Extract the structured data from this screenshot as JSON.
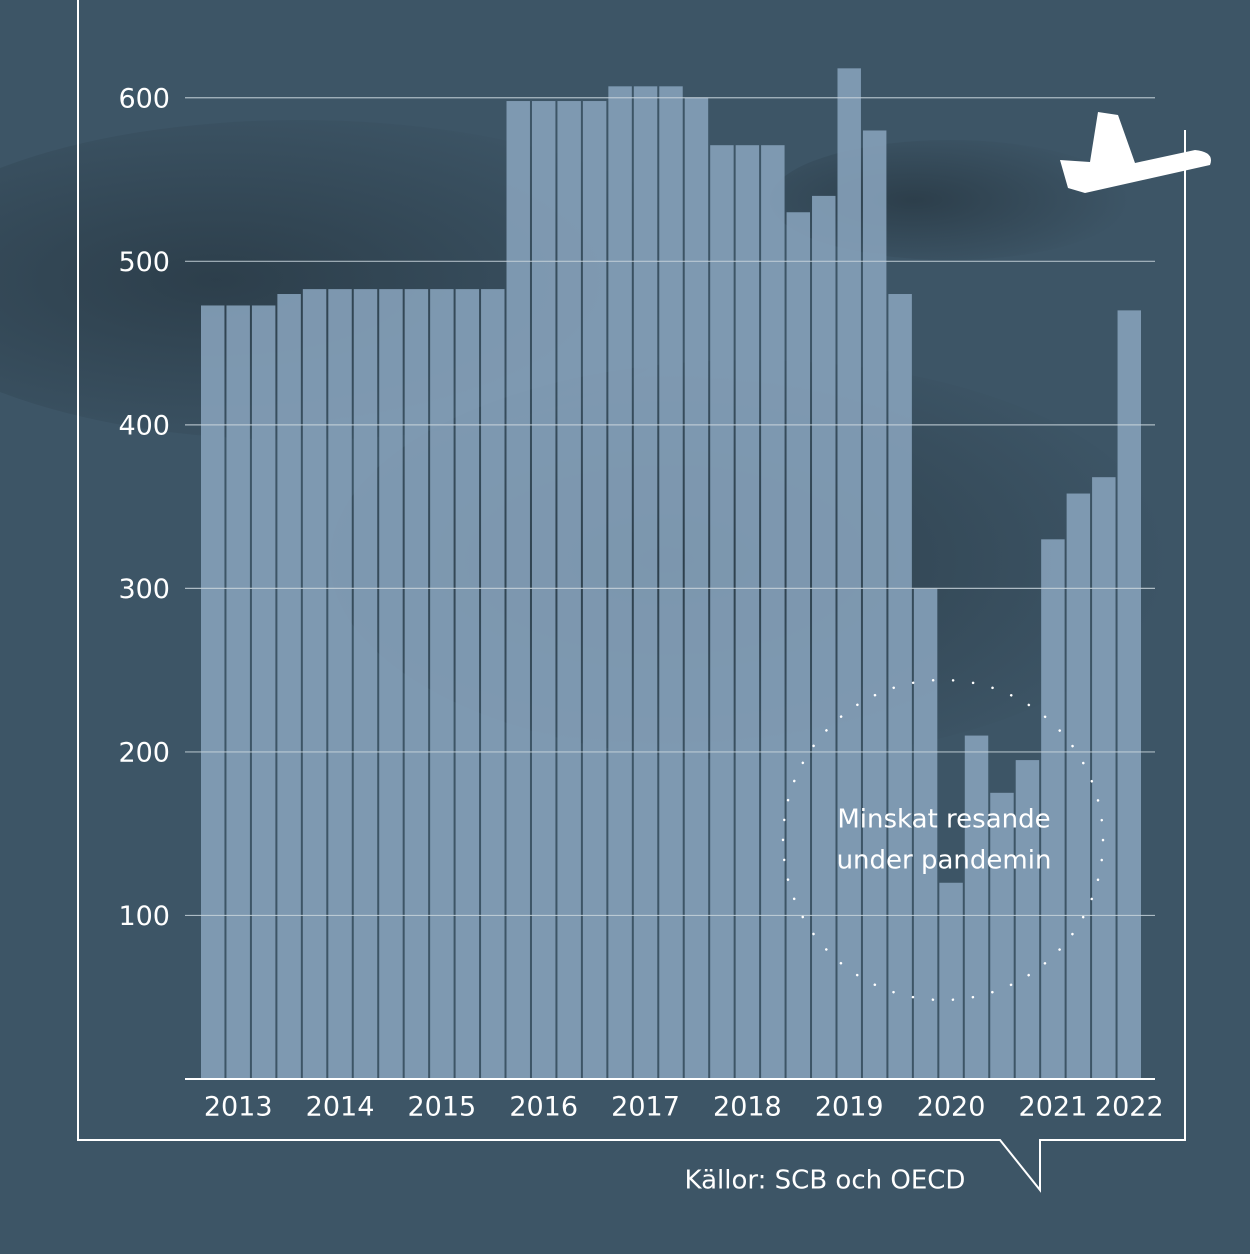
{
  "chart_data": {
    "type": "bar",
    "categories": [
      null,
      "2013",
      null,
      null,
      null,
      "2014",
      null,
      null,
      null,
      "2015",
      null,
      null,
      null,
      "2016",
      null,
      null,
      null,
      "2017",
      null,
      null,
      null,
      "2018",
      null,
      null,
      null,
      "2019",
      null,
      null,
      null,
      "2020",
      null,
      null,
      null,
      "2021",
      null,
      null,
      "2022"
    ],
    "values": [
      473,
      473,
      473,
      480,
      483,
      483,
      483,
      483,
      483,
      483,
      483,
      483,
      598,
      598,
      598,
      598,
      607,
      607,
      607,
      600,
      571,
      571,
      571,
      530,
      540,
      618,
      580,
      480,
      300,
      120,
      210,
      175,
      195,
      330,
      358,
      368,
      470
    ],
    "color": "#87a3bc",
    "ylim": [
      0,
      650
    ],
    "yticks": [
      100,
      200,
      300,
      400,
      500,
      600
    ],
    "grid": true,
    "annotation": [
      "Minskat resande",
      "under pandemin"
    ],
    "source": "Källor: SCB och OECD"
  }
}
